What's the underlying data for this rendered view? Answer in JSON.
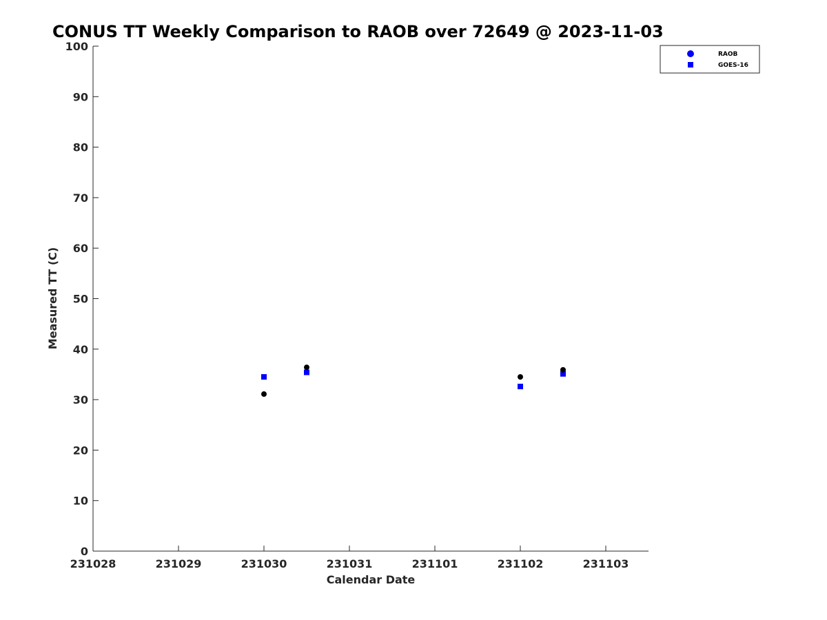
{
  "chart_data": {
    "type": "scatter",
    "title": "CONUS TT Weekly Comparison to RAOB over 72649 @ 2023-11-03",
    "xlabel": "Calendar Date",
    "ylabel": "Measured TT (C)",
    "x_ticks": [
      "231028",
      "231029",
      "231030",
      "231031",
      "231101",
      "231102",
      "231103"
    ],
    "y_ticks": [
      "0",
      "10",
      "20",
      "30",
      "40",
      "50",
      "60",
      "70",
      "80",
      "90",
      "100"
    ],
    "xlim": [
      "2023-10-28",
      "2023-11-03 12:00"
    ],
    "ylim": [
      0,
      100
    ],
    "grid": false,
    "legend_position": "top-right",
    "series": [
      {
        "name": "RAOB",
        "marker": "circle",
        "color": "#000000",
        "legend_color": "#0000ff",
        "points": [
          {
            "x": "2023-10-30 00:00",
            "y": 31.1
          },
          {
            "x": "2023-10-30 12:00",
            "y": 36.4
          },
          {
            "x": "2023-11-02 00:00",
            "y": 34.5
          },
          {
            "x": "2023-11-02 12:00",
            "y": 35.9
          }
        ]
      },
      {
        "name": "GOES-16",
        "marker": "square",
        "color": "#0000ff",
        "legend_color": "#0000ff",
        "points": [
          {
            "x": "2023-10-30 00:00",
            "y": 34.5
          },
          {
            "x": "2023-10-30 12:00",
            "y": 35.4
          },
          {
            "x": "2023-11-02 00:00",
            "y": 32.6
          },
          {
            "x": "2023-11-02 12:00",
            "y": 35.1
          }
        ]
      }
    ]
  }
}
